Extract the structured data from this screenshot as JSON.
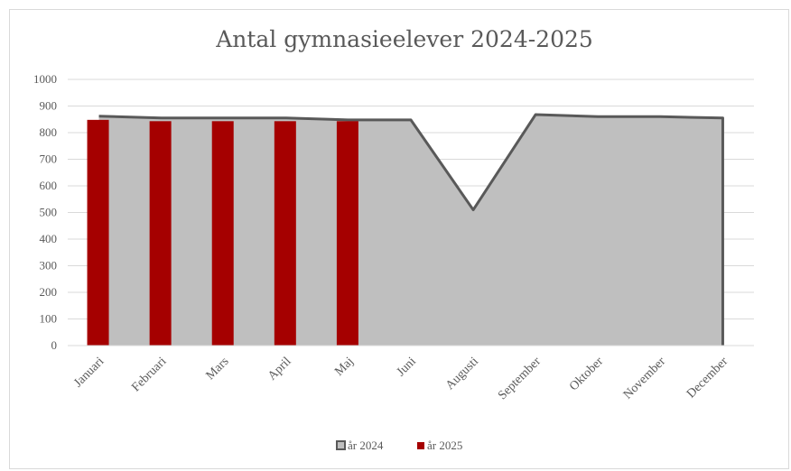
{
  "chart_data": {
    "type": "bar",
    "title": "Antal  gymnasieelever 2024-2025",
    "xlabel": "",
    "ylabel": "",
    "ylim": [
      0,
      1000
    ],
    "yticks": [
      "1000",
      "900",
      "800",
      "700",
      "600",
      "500",
      "400",
      "300",
      "200",
      "100",
      "0"
    ],
    "categories": [
      "Januari",
      "Februari",
      "Mars",
      "April",
      "Maj",
      "Juni",
      "Augusti",
      "September",
      "Oktober",
      "November",
      "December"
    ],
    "grid": true,
    "legend_position": "bottom",
    "series": [
      {
        "name": "år 2024",
        "kind": "area",
        "color": "#bfbfbf",
        "line_color": "#595959",
        "values": [
          862,
          855,
          855,
          855,
          848,
          848,
          510,
          868,
          860,
          860,
          855
        ]
      },
      {
        "name": "år 2025",
        "kind": "bar",
        "color": "#a50000",
        "values": [
          848,
          843,
          843,
          843,
          843,
          null,
          null,
          null,
          null,
          null,
          null
        ]
      }
    ]
  }
}
